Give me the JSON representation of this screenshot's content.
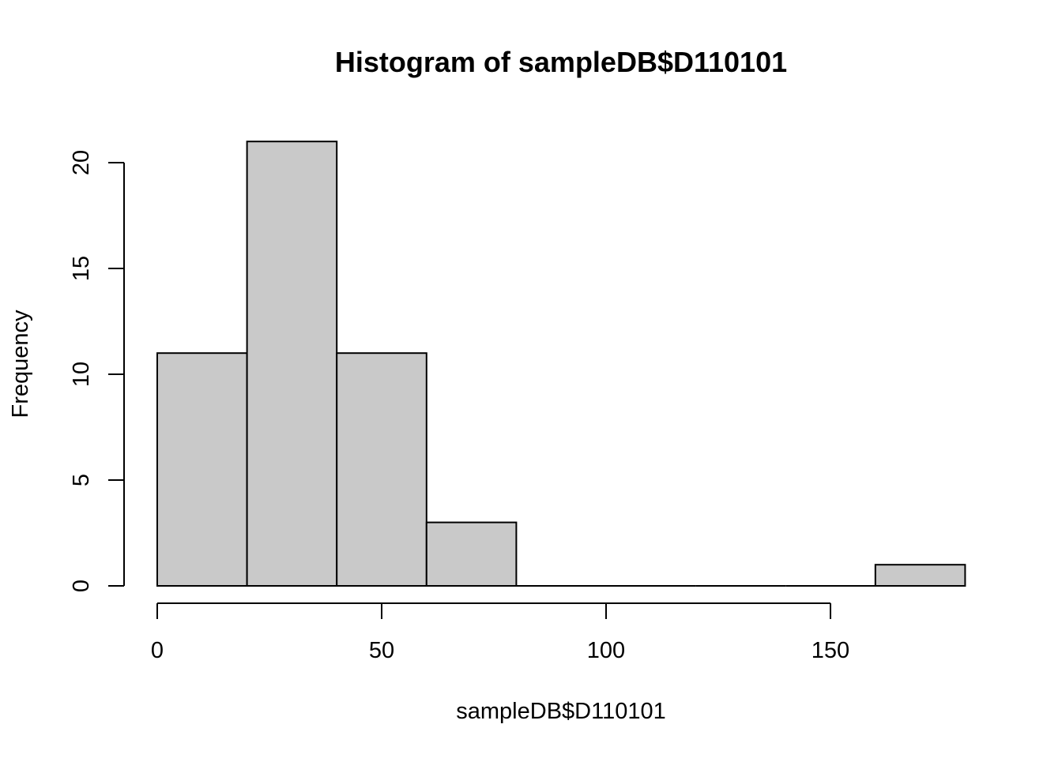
{
  "chart_data": {
    "type": "bar",
    "title": "Histogram of sampleDB$D110101",
    "xlabel": "sampleDB$D110101",
    "ylabel": "Frequency",
    "bins": [
      {
        "start": 0,
        "end": 20,
        "count": 11
      },
      {
        "start": 20,
        "end": 40,
        "count": 21
      },
      {
        "start": 40,
        "end": 60,
        "count": 11
      },
      {
        "start": 60,
        "end": 80,
        "count": 3
      },
      {
        "start": 80,
        "end": 100,
        "count": 0
      },
      {
        "start": 100,
        "end": 120,
        "count": 0
      },
      {
        "start": 120,
        "end": 140,
        "count": 0
      },
      {
        "start": 140,
        "end": 160,
        "count": 0
      },
      {
        "start": 160,
        "end": 180,
        "count": 1
      }
    ],
    "xticks": [
      "0",
      "50",
      "100",
      "150"
    ],
    "yticks": [
      "0",
      "5",
      "10",
      "15",
      "20"
    ],
    "xlim": [
      0,
      150
    ],
    "ylim": [
      0,
      20
    ],
    "grid": false,
    "colors": {
      "bar_fill": "#c9c9c9",
      "bar_stroke": "#000000"
    }
  }
}
